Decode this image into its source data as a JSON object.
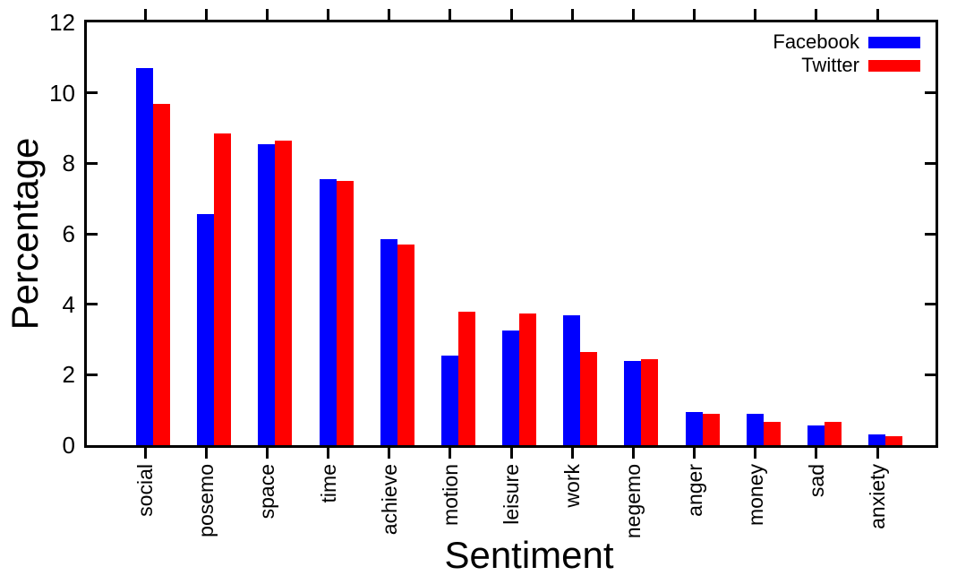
{
  "chart_data": {
    "type": "bar",
    "title": "",
    "xlabel": "Sentiment",
    "ylabel": "Percentage",
    "categories": [
      "social",
      "posemo",
      "space",
      "time",
      "achieve",
      "motion",
      "leisure",
      "work",
      "negemo",
      "anger",
      "money",
      "sad",
      "anxiety"
    ],
    "series": [
      {
        "name": "Facebook",
        "color": "#0000ff",
        "values": [
          10.7,
          6.55,
          8.55,
          7.55,
          5.85,
          2.55,
          3.25,
          3.7,
          2.4,
          0.95,
          0.9,
          0.55,
          0.3
        ]
      },
      {
        "name": "Twitter",
        "color": "#ff0000",
        "values": [
          9.7,
          8.85,
          8.65,
          7.5,
          5.7,
          3.8,
          3.75,
          2.65,
          2.45,
          0.9,
          0.65,
          0.65,
          0.25
        ]
      }
    ],
    "ylim": [
      0,
      12
    ],
    "yticks": [
      0,
      2,
      4,
      6,
      8,
      10,
      12
    ],
    "legend_position": "top-right-inside",
    "grid": false,
    "background_color": "#ffffff",
    "axis_color": "#000000"
  }
}
